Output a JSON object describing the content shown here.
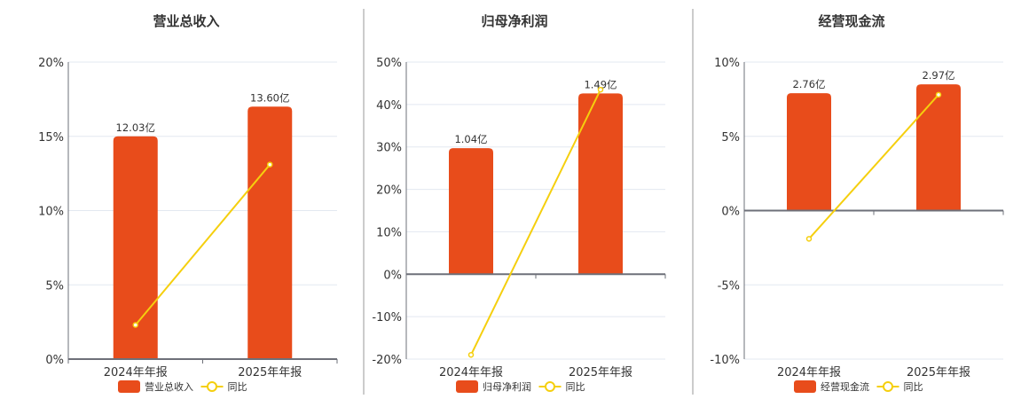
{
  "colors": {
    "bar": "#E84C1B",
    "line": "#F5CF0E",
    "grid": "#E3E8F0",
    "axis": "#6E7079",
    "divider": "#AAAAAA"
  },
  "legend": {
    "line_label": "同比"
  },
  "chart_data": [
    {
      "type": "bar+line",
      "title": "营业总收入",
      "categories": [
        "2024年年报",
        "2025年年报"
      ],
      "series": [
        {
          "name": "营业总收入",
          "type": "bar",
          "labels": [
            "12.03亿",
            "13.60亿"
          ],
          "values": [
            12.03,
            13.6
          ],
          "plotted_pct": [
            15.0,
            17.0
          ]
        },
        {
          "name": "同比",
          "type": "line",
          "values": [
            2.3,
            13.1
          ]
        }
      ],
      "yticks": [
        "20%",
        "15%",
        "10%",
        "5%",
        "0%"
      ],
      "ylim": [
        0,
        20
      ],
      "grid": true,
      "legend_position": "bottom"
    },
    {
      "type": "bar+line",
      "title": "归母净利润",
      "categories": [
        "2024年年报",
        "2025年年报"
      ],
      "series": [
        {
          "name": "归母净利润",
          "type": "bar",
          "labels": [
            "1.04亿",
            "1.49亿"
          ],
          "values": [
            1.04,
            1.49
          ],
          "plotted_pct": [
            29.7,
            42.6
          ]
        },
        {
          "name": "同比",
          "type": "line",
          "values": [
            -19.0,
            43.5
          ]
        }
      ],
      "yticks": [
        "50%",
        "40%",
        "30%",
        "20%",
        "10%",
        "0%",
        "-10%",
        "-20%"
      ],
      "ylim": [
        -20,
        50
      ],
      "grid": true,
      "legend_position": "bottom"
    },
    {
      "type": "bar+line",
      "title": "经营现金流",
      "categories": [
        "2024年年报",
        "2025年年报"
      ],
      "series": [
        {
          "name": "经营现金流",
          "type": "bar",
          "labels": [
            "2.76亿",
            "2.97亿"
          ],
          "values": [
            2.76,
            2.97
          ],
          "plotted_pct": [
            7.9,
            8.5
          ]
        },
        {
          "name": "同比",
          "type": "line",
          "values": [
            -1.9,
            7.8
          ]
        }
      ],
      "yticks": [
        "10%",
        "5%",
        "0%",
        "-5%",
        "-10%"
      ],
      "ylim": [
        -10,
        10
      ],
      "grid": true,
      "legend_position": "bottom"
    }
  ]
}
